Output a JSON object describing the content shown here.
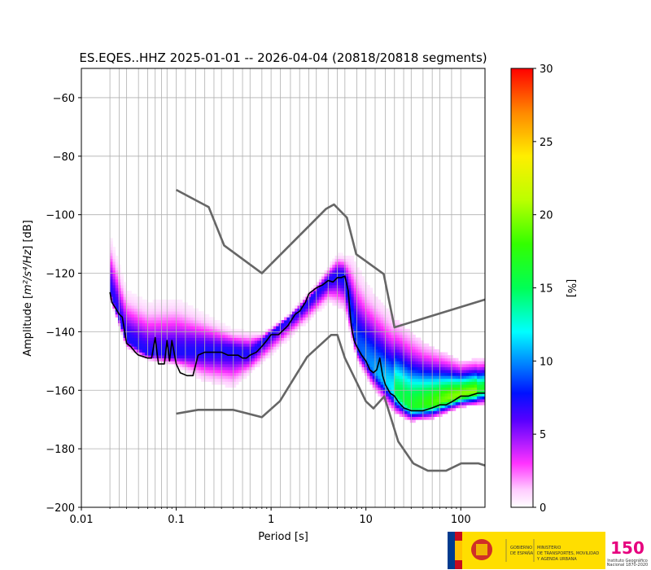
{
  "chart_data": {
    "type": "heatmap",
    "title": "ES.EQES..HHZ   2025-01-01 -- 2026-04-04  (20818/20818 segments)",
    "xlabel": "Period [s]",
    "ylabel_prefix": "Amplitude [",
    "ylabel_unit": "m²/s⁴/Hz",
    "ylabel_suffix": "] [dB]",
    "x_scale": "log",
    "xlim": [
      0.01,
      180
    ],
    "ylim": [
      -200,
      -50
    ],
    "x_ticks": [
      {
        "value": 0.01,
        "label": "0.01"
      },
      {
        "value": 0.1,
        "label": "0.1"
      },
      {
        "value": 1,
        "label": "1"
      },
      {
        "value": 10,
        "label": "10"
      },
      {
        "value": 100,
        "label": "100"
      }
    ],
    "y_ticks": [
      {
        "value": -60,
        "label": "−60"
      },
      {
        "value": -80,
        "label": "−80"
      },
      {
        "value": -100,
        "label": "−100"
      },
      {
        "value": -120,
        "label": "−120"
      },
      {
        "value": -140,
        "label": "−140"
      },
      {
        "value": -160,
        "label": "−160"
      },
      {
        "value": -180,
        "label": "−180"
      },
      {
        "value": -200,
        "label": "−200"
      }
    ],
    "grid": true,
    "period_gridlines": [
      0.02,
      0.025,
      0.03,
      0.04,
      0.05,
      0.06,
      0.07,
      0.08,
      0.1,
      0.125,
      0.16,
      0.2,
      0.25,
      0.3,
      0.4,
      0.5,
      0.6,
      0.8,
      1,
      1.25,
      1.6,
      2,
      2.5,
      3,
      4,
      5,
      6,
      8,
      10,
      12.5,
      16,
      20,
      25,
      30,
      40,
      50,
      60,
      80,
      100
    ],
    "colorbar": {
      "label": "[%]",
      "range": [
        0,
        30
      ],
      "ticks": [
        {
          "value": 0,
          "label": "0"
        },
        {
          "value": 5,
          "label": "5"
        },
        {
          "value": 10,
          "label": "10"
        },
        {
          "value": 15,
          "label": "15"
        },
        {
          "value": 20,
          "label": "20"
        },
        {
          "value": 25,
          "label": "25"
        },
        {
          "value": 30,
          "label": "30"
        }
      ]
    },
    "distribution": {
      "center": [
        [
          0.02,
          -126
        ],
        [
          0.03,
          -143
        ],
        [
          0.05,
          -148
        ],
        [
          0.1,
          -148
        ],
        [
          0.2,
          -147
        ],
        [
          0.4,
          -147
        ],
        [
          0.6,
          -148
        ],
        [
          1,
          -141
        ],
        [
          2,
          -133
        ],
        [
          4,
          -123
        ],
        [
          5,
          -121
        ],
        [
          6,
          -122
        ],
        [
          8,
          -145
        ],
        [
          12,
          -153
        ],
        [
          20,
          -161
        ],
        [
          30,
          -166
        ],
        [
          50,
          -165
        ],
        [
          100,
          -162
        ],
        [
          180,
          -160
        ]
      ],
      "upper": [
        [
          0.02,
          -108
        ],
        [
          0.03,
          -127
        ],
        [
          0.05,
          -131
        ],
        [
          0.1,
          -130
        ],
        [
          0.2,
          -135
        ],
        [
          0.4,
          -140
        ],
        [
          0.8,
          -141
        ],
        [
          1.5,
          -135
        ],
        [
          3,
          -124
        ],
        [
          5,
          -114
        ],
        [
          7,
          -115
        ],
        [
          10,
          -125
        ],
        [
          20,
          -137
        ],
        [
          40,
          -145
        ],
        [
          100,
          -151
        ],
        [
          180,
          -150
        ]
      ],
      "lower": [
        [
          0.02,
          -129
        ],
        [
          0.03,
          -146
        ],
        [
          0.05,
          -150
        ],
        [
          0.1,
          -152
        ],
        [
          0.2,
          -157
        ],
        [
          0.4,
          -159
        ],
        [
          0.8,
          -151
        ],
        [
          1.5,
          -143
        ],
        [
          3,
          -134
        ],
        [
          4,
          -130
        ],
        [
          6,
          -133
        ],
        [
          8,
          -150
        ],
        [
          12,
          -160
        ],
        [
          20,
          -168
        ],
        [
          30,
          -171
        ],
        [
          50,
          -170
        ],
        [
          100,
          -166
        ],
        [
          180,
          -165
        ]
      ]
    },
    "series": [
      {
        "role": "mode",
        "color": "#000000",
        "points": [
          [
            0.02,
            -126.5
          ],
          [
            0.021,
            -130
          ],
          [
            0.023,
            -132
          ],
          [
            0.025,
            -134
          ],
          [
            0.027,
            -135
          ],
          [
            0.03,
            -144
          ],
          [
            0.033,
            -145
          ],
          [
            0.037,
            -147
          ],
          [
            0.04,
            -148
          ],
          [
            0.045,
            -148.5
          ],
          [
            0.05,
            -149
          ],
          [
            0.055,
            -149
          ],
          [
            0.06,
            -142
          ],
          [
            0.065,
            -151
          ],
          [
            0.07,
            -151
          ],
          [
            0.075,
            -151
          ],
          [
            0.08,
            -143
          ],
          [
            0.085,
            -150
          ],
          [
            0.09,
            -143
          ],
          [
            0.1,
            -151
          ],
          [
            0.11,
            -154
          ],
          [
            0.13,
            -155
          ],
          [
            0.15,
            -155
          ],
          [
            0.17,
            -148
          ],
          [
            0.2,
            -147
          ],
          [
            0.25,
            -147
          ],
          [
            0.3,
            -147
          ],
          [
            0.35,
            -148
          ],
          [
            0.4,
            -148
          ],
          [
            0.45,
            -148
          ],
          [
            0.5,
            -149
          ],
          [
            0.55,
            -149
          ],
          [
            0.6,
            -148
          ],
          [
            0.7,
            -147
          ],
          [
            0.8,
            -145
          ],
          [
            0.9,
            -143
          ],
          [
            1,
            -141
          ],
          [
            1.2,
            -141
          ],
          [
            1.5,
            -138
          ],
          [
            1.8,
            -134
          ],
          [
            2,
            -133
          ],
          [
            2.3,
            -130
          ],
          [
            2.5,
            -127
          ],
          [
            3,
            -125
          ],
          [
            3.5,
            -124
          ],
          [
            4,
            -122.5
          ],
          [
            4.5,
            -123
          ],
          [
            5,
            -121.5
          ],
          [
            5.5,
            -121.5
          ],
          [
            6,
            -121
          ],
          [
            6.5,
            -126
          ],
          [
            7,
            -138
          ],
          [
            7.5,
            -143
          ],
          [
            8,
            -145
          ],
          [
            9,
            -148
          ],
          [
            10,
            -150
          ],
          [
            11,
            -153
          ],
          [
            12,
            -154
          ],
          [
            13,
            -153
          ],
          [
            14,
            -149
          ],
          [
            15,
            -155
          ],
          [
            16,
            -158
          ],
          [
            18,
            -161
          ],
          [
            20,
            -162
          ],
          [
            22,
            -164
          ],
          [
            25,
            -166
          ],
          [
            30,
            -167
          ],
          [
            40,
            -167
          ],
          [
            50,
            -166
          ],
          [
            60,
            -165
          ],
          [
            70,
            -165
          ],
          [
            80,
            -164
          ],
          [
            100,
            -162
          ],
          [
            120,
            -162
          ],
          [
            150,
            -161
          ],
          [
            180,
            -161
          ]
        ]
      },
      {
        "role": "high-noise-model",
        "color": "#666666",
        "points": [
          [
            0.1,
            -91.5
          ],
          [
            0.22,
            -97.4
          ],
          [
            0.32,
            -110.5
          ],
          [
            0.8,
            -120
          ],
          [
            3.8,
            -98
          ],
          [
            4.6,
            -96.5
          ],
          [
            6.3,
            -101
          ],
          [
            7.9,
            -113.5
          ],
          [
            15.4,
            -120.3
          ],
          [
            20,
            -138.5
          ],
          [
            180,
            -129
          ]
        ]
      },
      {
        "role": "low-noise-model",
        "color": "#666666",
        "points": [
          [
            0.1,
            -168
          ],
          [
            0.17,
            -166.7
          ],
          [
            0.4,
            -166.7
          ],
          [
            0.8,
            -169.2
          ],
          [
            1.24,
            -163.7
          ],
          [
            2.4,
            -148.6
          ],
          [
            4.3,
            -141.1
          ],
          [
            5,
            -141.1
          ],
          [
            6,
            -149
          ],
          [
            10,
            -163.8
          ],
          [
            12,
            -166.2
          ],
          [
            15.6,
            -162.1
          ],
          [
            21.9,
            -177.5
          ],
          [
            31.6,
            -185
          ],
          [
            45,
            -187.5
          ],
          [
            70,
            -187.5
          ],
          [
            101,
            -185
          ],
          [
            154,
            -185
          ],
          [
            180,
            -185.7
          ]
        ]
      }
    ]
  },
  "logos": {
    "gov_line1": "GOBIERNO",
    "gov_line2": "DE ESPAÑA",
    "ministry_line1": "MINISTERIO",
    "ministry_line2": "DE TRANSPORTES, MOVILIDAD",
    "ministry_line3": "Y AGENDA URBANA",
    "ign_number": "150",
    "ign_line1": "Instituto Geográfico",
    "ign_line2": "Nacional 1870-2020"
  }
}
